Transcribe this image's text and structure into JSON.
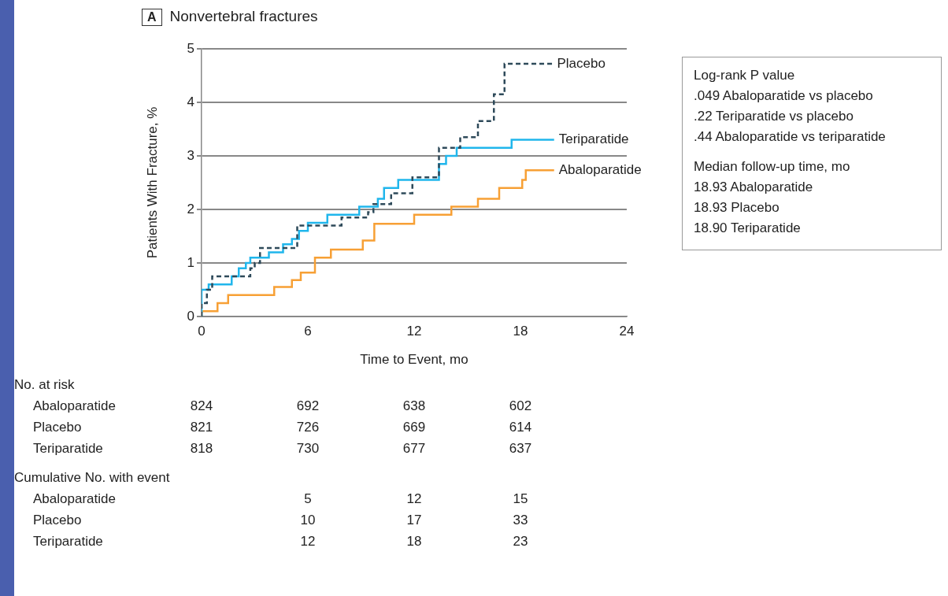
{
  "chart_data": {
    "type": "step",
    "title": "A Nonvertebral fractures",
    "xlabel": "Time to Event, mo",
    "ylabel": "Patients With Fracture, %",
    "xlim": [
      0,
      24
    ],
    "xticks": [
      0,
      6,
      12,
      18,
      24
    ],
    "ylim": [
      0,
      5
    ],
    "yticks": [
      0,
      1,
      2,
      3,
      4,
      5
    ],
    "grid": "y",
    "series": [
      {
        "name": "Placebo",
        "color": "#2e4a5a",
        "line_style": "dashed",
        "x": [
          0,
          0.3,
          0.6,
          2.75,
          3.0,
          3.3,
          5.4,
          7.9,
          9.4,
          9.7,
          10.7,
          11.9,
          13.4,
          14.6,
          15.6,
          16.5,
          17.1,
          17.5,
          19.8
        ],
        "values": [
          0,
          0.25,
          0.5,
          0.75,
          0.9,
          1.0,
          1.28,
          1.7,
          1.85,
          1.95,
          2.1,
          2.3,
          2.6,
          3.15,
          3.35,
          3.65,
          4.15,
          4.72,
          4.72
        ]
      },
      {
        "name": "Teriparatide",
        "color": "#20b6ec",
        "x": [
          0,
          0.4,
          1.7,
          2.1,
          2.5,
          2.75,
          3.8,
          4.6,
          5.1,
          5.5,
          6.0,
          7.1,
          8.9,
          9.95,
          10.3,
          11.1,
          13.4,
          13.8,
          14.4,
          17.5,
          18.3,
          19.9
        ],
        "values": [
          0,
          0.5,
          0.6,
          0.75,
          0.9,
          1.0,
          1.1,
          1.2,
          1.35,
          1.45,
          1.6,
          1.75,
          1.9,
          2.05,
          2.2,
          2.4,
          2.55,
          2.85,
          3.0,
          3.15,
          3.3,
          3.3
        ]
      },
      {
        "name": "Abaloparatide",
        "color": "#f7a035",
        "x": [
          0,
          0.9,
          1.5,
          4.1,
          5.1,
          5.6,
          6.4,
          7.3,
          9.1,
          9.75,
          12.0,
          14.1,
          15.6,
          16.8,
          18.1,
          18.3,
          18.6,
          19.9
        ],
        "values": [
          0,
          0.1,
          0.25,
          0.4,
          0.55,
          0.68,
          0.82,
          1.1,
          1.25,
          1.42,
          1.73,
          1.9,
          2.05,
          2.2,
          2.4,
          2.55,
          2.73,
          2.73
        ]
      }
    ],
    "annotations": [
      "Log-rank P value\n.049 Abaloparatide vs placebo\n.22 Teriparatide vs placebo\n.44 Abaloparatide vs teriparatide",
      "Median follow-up time, mo\n18.93 Abaloparatide\n18.93 Placebo\n18.90 Teriparatide",
      "No. at risk",
      "Abaloparatide\t824\t692\t638\t602",
      "Placebo\t821\t726\t669\t614",
      "Teriparatide\t818\t730\t677\t637",
      "Cumulative No. with event",
      "Abaloparatide\t5\t12\t15",
      "Placebo\t10\t17\t33",
      "Teriparatide\t12\t18\t23"
    ]
  }
}
